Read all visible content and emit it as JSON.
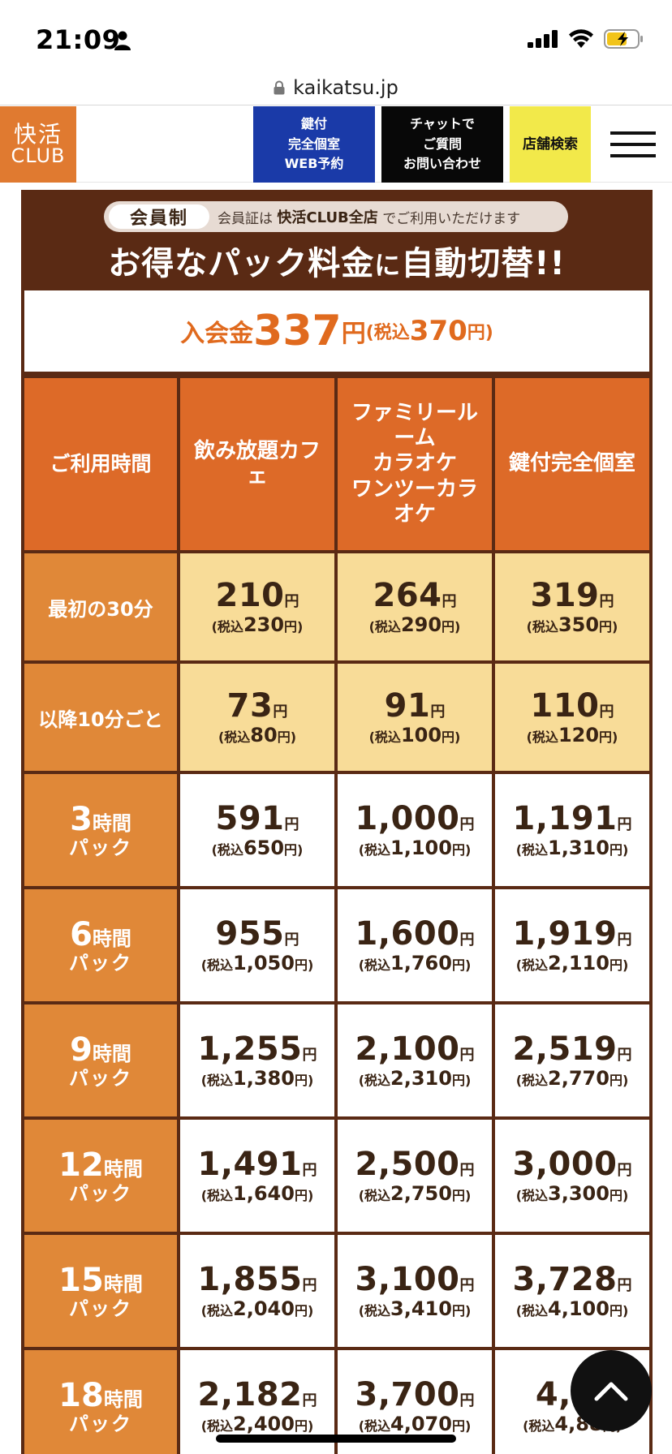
{
  "status_bar": {
    "time": "21:09"
  },
  "browser": {
    "url": "kaikatsu.jp"
  },
  "header": {
    "logo_line1": "快活",
    "logo_line2": "CLUB",
    "buttons": [
      {
        "lines": [
          "鍵付",
          "完全個室",
          "WEB予約"
        ]
      },
      {
        "lines": [
          "チャットで",
          "ご質問",
          "お問い合わせ"
        ]
      },
      {
        "lines": [
          "店舗検索"
        ]
      }
    ]
  },
  "panel": {
    "pill_tag": "会員制",
    "pill_text_pre": "会員証は",
    "pill_text_bold": "快活CLUB全店",
    "pill_text_post": "でご利用いただけます",
    "headline_a": "お得なパック料金",
    "headline_b": "に",
    "headline_c": "自動切替!!",
    "fee": {
      "label": "入会金",
      "amount": "337",
      "unit": "円",
      "tax_open": "(税込",
      "tax_amount": "370",
      "tax_close": "円)"
    }
  },
  "table": {
    "header": [
      "ご利用時間",
      "飲み放題カフェ",
      "ファミリールーム\nカラオケ\nワンツーカラオケ",
      "鍵付完全個室"
    ],
    "yen": "円",
    "tax_prefix": "(税込",
    "tax_suffix": "円)",
    "rows": [
      {
        "label": "最初の30分",
        "type": "yellow",
        "cells": [
          {
            "price": "210",
            "tax": "230"
          },
          {
            "price": "264",
            "tax": "290"
          },
          {
            "price": "319",
            "tax": "350"
          }
        ]
      },
      {
        "label": "以降10分ごと",
        "type": "yellow",
        "cells": [
          {
            "price": "73",
            "tax": "80"
          },
          {
            "price": "91",
            "tax": "100"
          },
          {
            "price": "110",
            "tax": "120"
          }
        ]
      },
      {
        "hours": "3",
        "hours_unit": "時間",
        "pack": "パック",
        "type": "white",
        "cells": [
          {
            "price": "591",
            "tax": "650"
          },
          {
            "price": "1,000",
            "tax": "1,100"
          },
          {
            "price": "1,191",
            "tax": "1,310"
          }
        ]
      },
      {
        "hours": "6",
        "hours_unit": "時間",
        "pack": "パック",
        "type": "white",
        "cells": [
          {
            "price": "955",
            "tax": "1,050"
          },
          {
            "price": "1,600",
            "tax": "1,760"
          },
          {
            "price": "1,919",
            "tax": "2,110"
          }
        ]
      },
      {
        "hours": "9",
        "hours_unit": "時間",
        "pack": "パック",
        "type": "white",
        "cells": [
          {
            "price": "1,255",
            "tax": "1,380"
          },
          {
            "price": "2,100",
            "tax": "2,310"
          },
          {
            "price": "2,519",
            "tax": "2,770"
          }
        ]
      },
      {
        "hours": "12",
        "hours_unit": "時間",
        "pack": "パック",
        "type": "white",
        "cells": [
          {
            "price": "1,491",
            "tax": "1,640"
          },
          {
            "price": "2,500",
            "tax": "2,750"
          },
          {
            "price": "3,000",
            "tax": "3,300"
          }
        ]
      },
      {
        "hours": "15",
        "hours_unit": "時間",
        "pack": "パック",
        "type": "white",
        "cells": [
          {
            "price": "1,855",
            "tax": "2,040"
          },
          {
            "price": "3,100",
            "tax": "3,410"
          },
          {
            "price": "3,728",
            "tax": "4,100"
          }
        ]
      },
      {
        "hours": "18",
        "hours_unit": "時間",
        "pack": "パック",
        "type": "white",
        "cells": [
          {
            "price": "2,182",
            "tax": "2,400"
          },
          {
            "price": "3,700",
            "tax": "4,070"
          },
          {
            "price": "4,4",
            "tax": "4,88"
          }
        ]
      }
    ]
  },
  "colors": {
    "brand_orange": "#e07a30",
    "header_orange": "#dd6a28",
    "label_orange": "#e08838",
    "panel_brown": "#5a2a14",
    "cell_yellow": "#f8dc98",
    "fee_orange": "#e06a1e",
    "web_reserve_blue": "#1a3aa8",
    "store_search_yellow": "#f2e94a"
  },
  "icons": [
    "person-icon",
    "signal-icon",
    "wifi-icon",
    "battery-charging-icon",
    "lock-icon",
    "hamburger-menu-icon",
    "chevron-up-icon"
  ]
}
